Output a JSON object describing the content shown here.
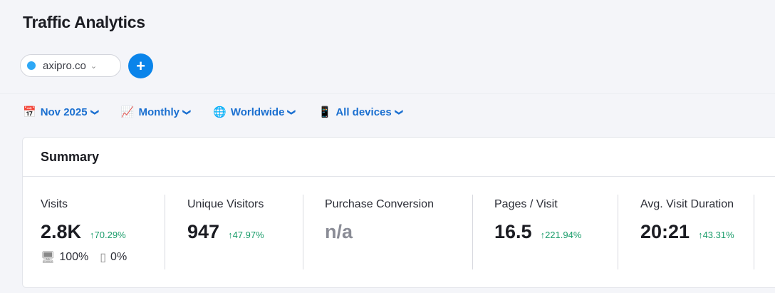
{
  "header": {
    "title": "Traffic Analytics"
  },
  "project": {
    "domain": "axipro.co",
    "add_label": "+"
  },
  "filters": [
    {
      "icon": "calendar-icon",
      "label": "Nov 2025"
    },
    {
      "icon": "line-chart-icon",
      "label": "Monthly"
    },
    {
      "icon": "globe-icon",
      "label": "Worldwide"
    },
    {
      "icon": "devices-icon",
      "label": "All devices"
    }
  ],
  "summary": {
    "title": "Summary",
    "metrics": [
      {
        "label": "Visits",
        "value": "2.8K",
        "delta": "↑70.29%",
        "desktop": "100%",
        "mobile": "0%"
      },
      {
        "label": "Unique Visitors",
        "value": "947",
        "delta": "↑47.97%"
      },
      {
        "label": "Purchase Conversion",
        "value": "n/a"
      },
      {
        "label": "Pages / Visit",
        "value": "16.5",
        "delta": "↑221.94%"
      },
      {
        "label": "Avg. Visit Duration",
        "value": "20:21",
        "delta": "↑43.31%"
      }
    ]
  },
  "colors": {
    "accent": "#0a84ea",
    "link": "#1a6fd0",
    "positive": "#1a9c6a"
  }
}
